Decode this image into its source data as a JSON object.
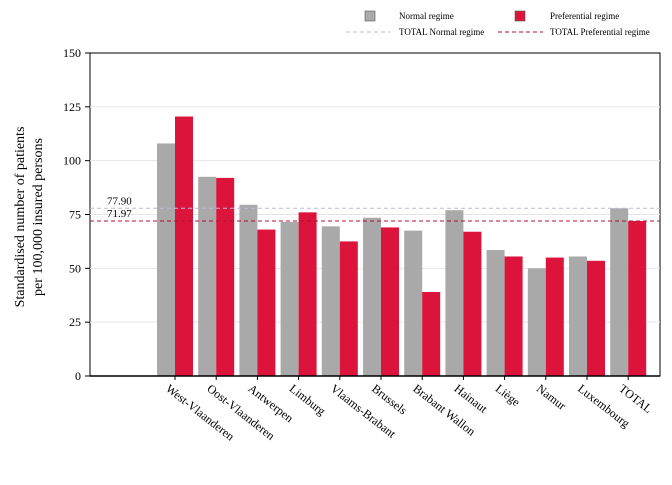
{
  "chart_data": {
    "type": "bar",
    "title": "",
    "xlabel": "",
    "ylabel_lines": [
      "Standardised number of patients",
      "per 100,000 insured persons"
    ],
    "ylim": [
      0,
      150
    ],
    "yticks": [
      0,
      25,
      50,
      75,
      100,
      125,
      150
    ],
    "grid": true,
    "legend_position": "top-right",
    "categories": [
      "West-Vlaanderen",
      "Oost-Vlaanderen",
      "Antwerpen",
      "Limburg",
      "Vlaams-Brabant",
      "Brussels",
      "Brabant Wallon",
      "Hainaut",
      "Liège",
      "Namur",
      "Luxembourg",
      "TOTAL"
    ],
    "series": [
      {
        "name": "Normal regime",
        "color": "#a9a9a9",
        "values": [
          108,
          92.5,
          79.5,
          71.5,
          69.5,
          73.5,
          67.5,
          77,
          58.5,
          50,
          55.5,
          77.9
        ]
      },
      {
        "name": "Preferential regime",
        "color": "#dc143c",
        "values": [
          120.5,
          92,
          68,
          76,
          62.5,
          69,
          39,
          67,
          55.5,
          55,
          53.5,
          71.97
        ]
      }
    ],
    "reference_lines": [
      {
        "name": "TOTAL Normal regime",
        "value": 77.9,
        "label": "77.90",
        "color": "#c0b8d8",
        "style": "dashed"
      },
      {
        "name": "TOTAL Preferential regime",
        "value": 71.97,
        "label": "71.97",
        "color": "#b01030",
        "style": "dashed"
      }
    ]
  }
}
